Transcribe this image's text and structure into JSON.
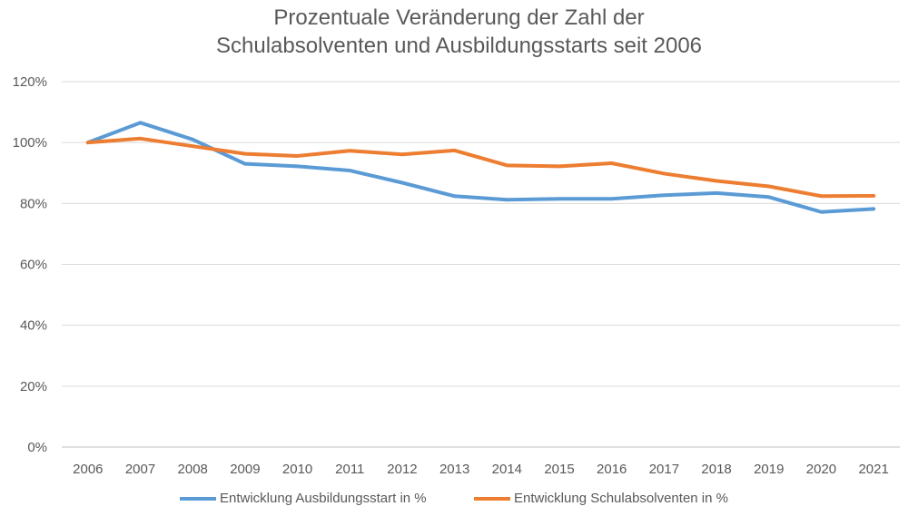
{
  "title": {
    "line1": "Prozentuale Veränderung der Zahl der",
    "line2": "Schulabsolventen und Ausbildungsstarts seit 2006"
  },
  "chart_data": {
    "type": "line",
    "title": "Prozentuale Veränderung der Zahl der Schulabsolventen und Ausbildungsstarts seit 2006",
    "x": [
      "2006",
      "2007",
      "2008",
      "2009",
      "2010",
      "2011",
      "2012",
      "2013",
      "2014",
      "2015",
      "2016",
      "2017",
      "2018",
      "2019",
      "2020",
      "2021"
    ],
    "ylim": [
      0,
      120
    ],
    "yticks": [
      0,
      20,
      40,
      60,
      80,
      100,
      120
    ],
    "ytick_labels": [
      "0%",
      "20%",
      "40%",
      "60%",
      "80%",
      "100%",
      "120%"
    ],
    "grid": true,
    "legend": "bottom",
    "series": [
      {
        "name": "Entwicklung Ausbildungsstart in %",
        "color": "#5B9BD5",
        "values": [
          100,
          106.5,
          101,
          93,
          92.2,
          90.8,
          86.8,
          82.4,
          81.2,
          81.5,
          81.5,
          82.7,
          83.4,
          82.1,
          77.2,
          78.2
        ]
      },
      {
        "name": "Entwicklung Schulabsolventen in %",
        "color": "#ED7D31",
        "values": [
          100,
          101.3,
          98.8,
          96.3,
          95.6,
          97.3,
          96.1,
          97.4,
          92.5,
          92.2,
          93.2,
          89.8,
          87.4,
          85.6,
          82.4,
          82.5
        ]
      }
    ]
  }
}
